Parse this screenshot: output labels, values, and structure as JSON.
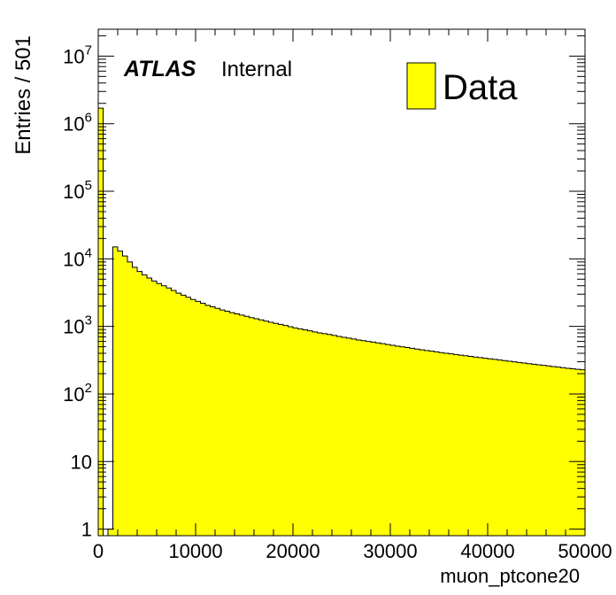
{
  "chart_data": {
    "type": "bar",
    "title": "",
    "xlabel": "muon_ptcone20",
    "ylabel": "Entries / 501",
    "xlim": [
      0,
      50000
    ],
    "ylim": [
      0.8,
      25000000
    ],
    "yscale": "log",
    "bin_width": 501,
    "x_ticks": [
      "0",
      "10000",
      "20000",
      "30000",
      "40000",
      "50000"
    ],
    "y_ticks": [
      {
        "value": 1,
        "base": "1",
        "exp": ""
      },
      {
        "value": 10,
        "base": "10",
        "exp": ""
      },
      {
        "value": 100,
        "base": "10",
        "exp": "2"
      },
      {
        "value": 1000,
        "base": "10",
        "exp": "3"
      },
      {
        "value": 10000,
        "base": "10",
        "exp": "4"
      },
      {
        "value": 100000,
        "base": "10",
        "exp": "5"
      },
      {
        "value": 1000000,
        "base": "10",
        "exp": "6"
      },
      {
        "value": 10000000,
        "base": "10",
        "exp": "7"
      }
    ],
    "atlas_label": "ATLAS",
    "atlas_status": "Internal",
    "legend": "top-right",
    "series": [
      {
        "name": "Data",
        "color": "#ffff00",
        "line_color": "#000000",
        "values": [
          1700000,
          0,
          1,
          15000,
          13000,
          11000,
          9000,
          7500,
          6500,
          5800,
          5200,
          4700,
          4300,
          4000,
          3700,
          3400,
          3100,
          2900,
          2700,
          2500,
          2350,
          2200,
          2050,
          1950,
          1850,
          1750,
          1680,
          1600,
          1530,
          1470,
          1410,
          1350,
          1300,
          1250,
          1200,
          1150,
          1110,
          1070,
          1030,
          990,
          950,
          920,
          890,
          860,
          830,
          800,
          780,
          760,
          735,
          710,
          690,
          670,
          650,
          630,
          615,
          600,
          585,
          570,
          555,
          540,
          525,
          510,
          498,
          486,
          474,
          462,
          450,
          440,
          430,
          420,
          410,
          400,
          392,
          384,
          376,
          368,
          360,
          352,
          345,
          338,
          332,
          325,
          318,
          312,
          305,
          299,
          293,
          287,
          281,
          276,
          270,
          265,
          260,
          255,
          250,
          245,
          240,
          236,
          232,
          228
        ]
      }
    ]
  }
}
